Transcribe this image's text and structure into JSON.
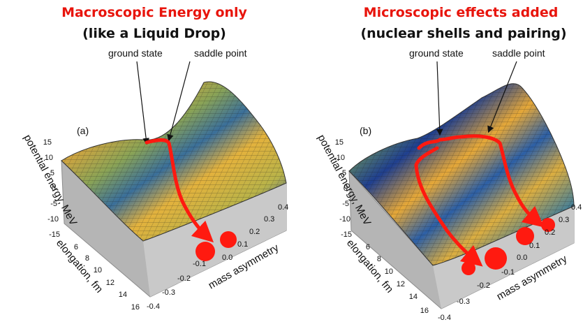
{
  "panels": [
    {
      "title": "Macroscopic Energy only",
      "subtitle": "(like a Liquid Drop)",
      "panel_label": "(a)",
      "annotations": {
        "ground_state": "ground state",
        "saddle_point": "saddle point"
      },
      "z_axis": {
        "label": "potential energy, MeV",
        "ticks": [
          "15",
          "10",
          "5",
          "0",
          "-5",
          "-10",
          "-15"
        ]
      },
      "elongation_axis": {
        "label": "elongation, fm",
        "ticks": [
          "6",
          "8",
          "10",
          "12",
          "14",
          "16"
        ]
      },
      "mass_axis": {
        "label": "mass asymmetry",
        "ticks": [
          "-0.4",
          "-0.3",
          "-0.2",
          "-0.1",
          "0.0",
          "0.1",
          "0.2",
          "0.3",
          "0.4"
        ]
      }
    },
    {
      "title": "Microscopic effects added",
      "subtitle": "(nuclear shells and pairing)",
      "panel_label": "(b)",
      "annotations": {
        "ground_state": "ground state",
        "saddle_point": "saddle point"
      },
      "z_axis": {
        "label": "potential energy, MeV",
        "ticks": [
          "15",
          "10",
          "5",
          "0",
          "-5",
          "-10",
          "-15"
        ]
      },
      "elongation_axis": {
        "label": "elongation, fm",
        "ticks": [
          "6",
          "8",
          "10",
          "12",
          "14",
          "16"
        ]
      },
      "mass_axis": {
        "label": "mass asymmetry",
        "ticks": [
          "-0.4",
          "-0.3",
          "-0.2",
          "-0.1",
          "0.0",
          "0.1",
          "0.2",
          "0.3",
          "0.4"
        ]
      }
    }
  ],
  "colors": {
    "title": "#e8140c",
    "path_arrow": "#ff1a10",
    "fragment": "#ff1a10",
    "surface_high": "#e7a636",
    "surface_low": "#1f3f8f",
    "base_block": "#b5b5b5"
  }
}
